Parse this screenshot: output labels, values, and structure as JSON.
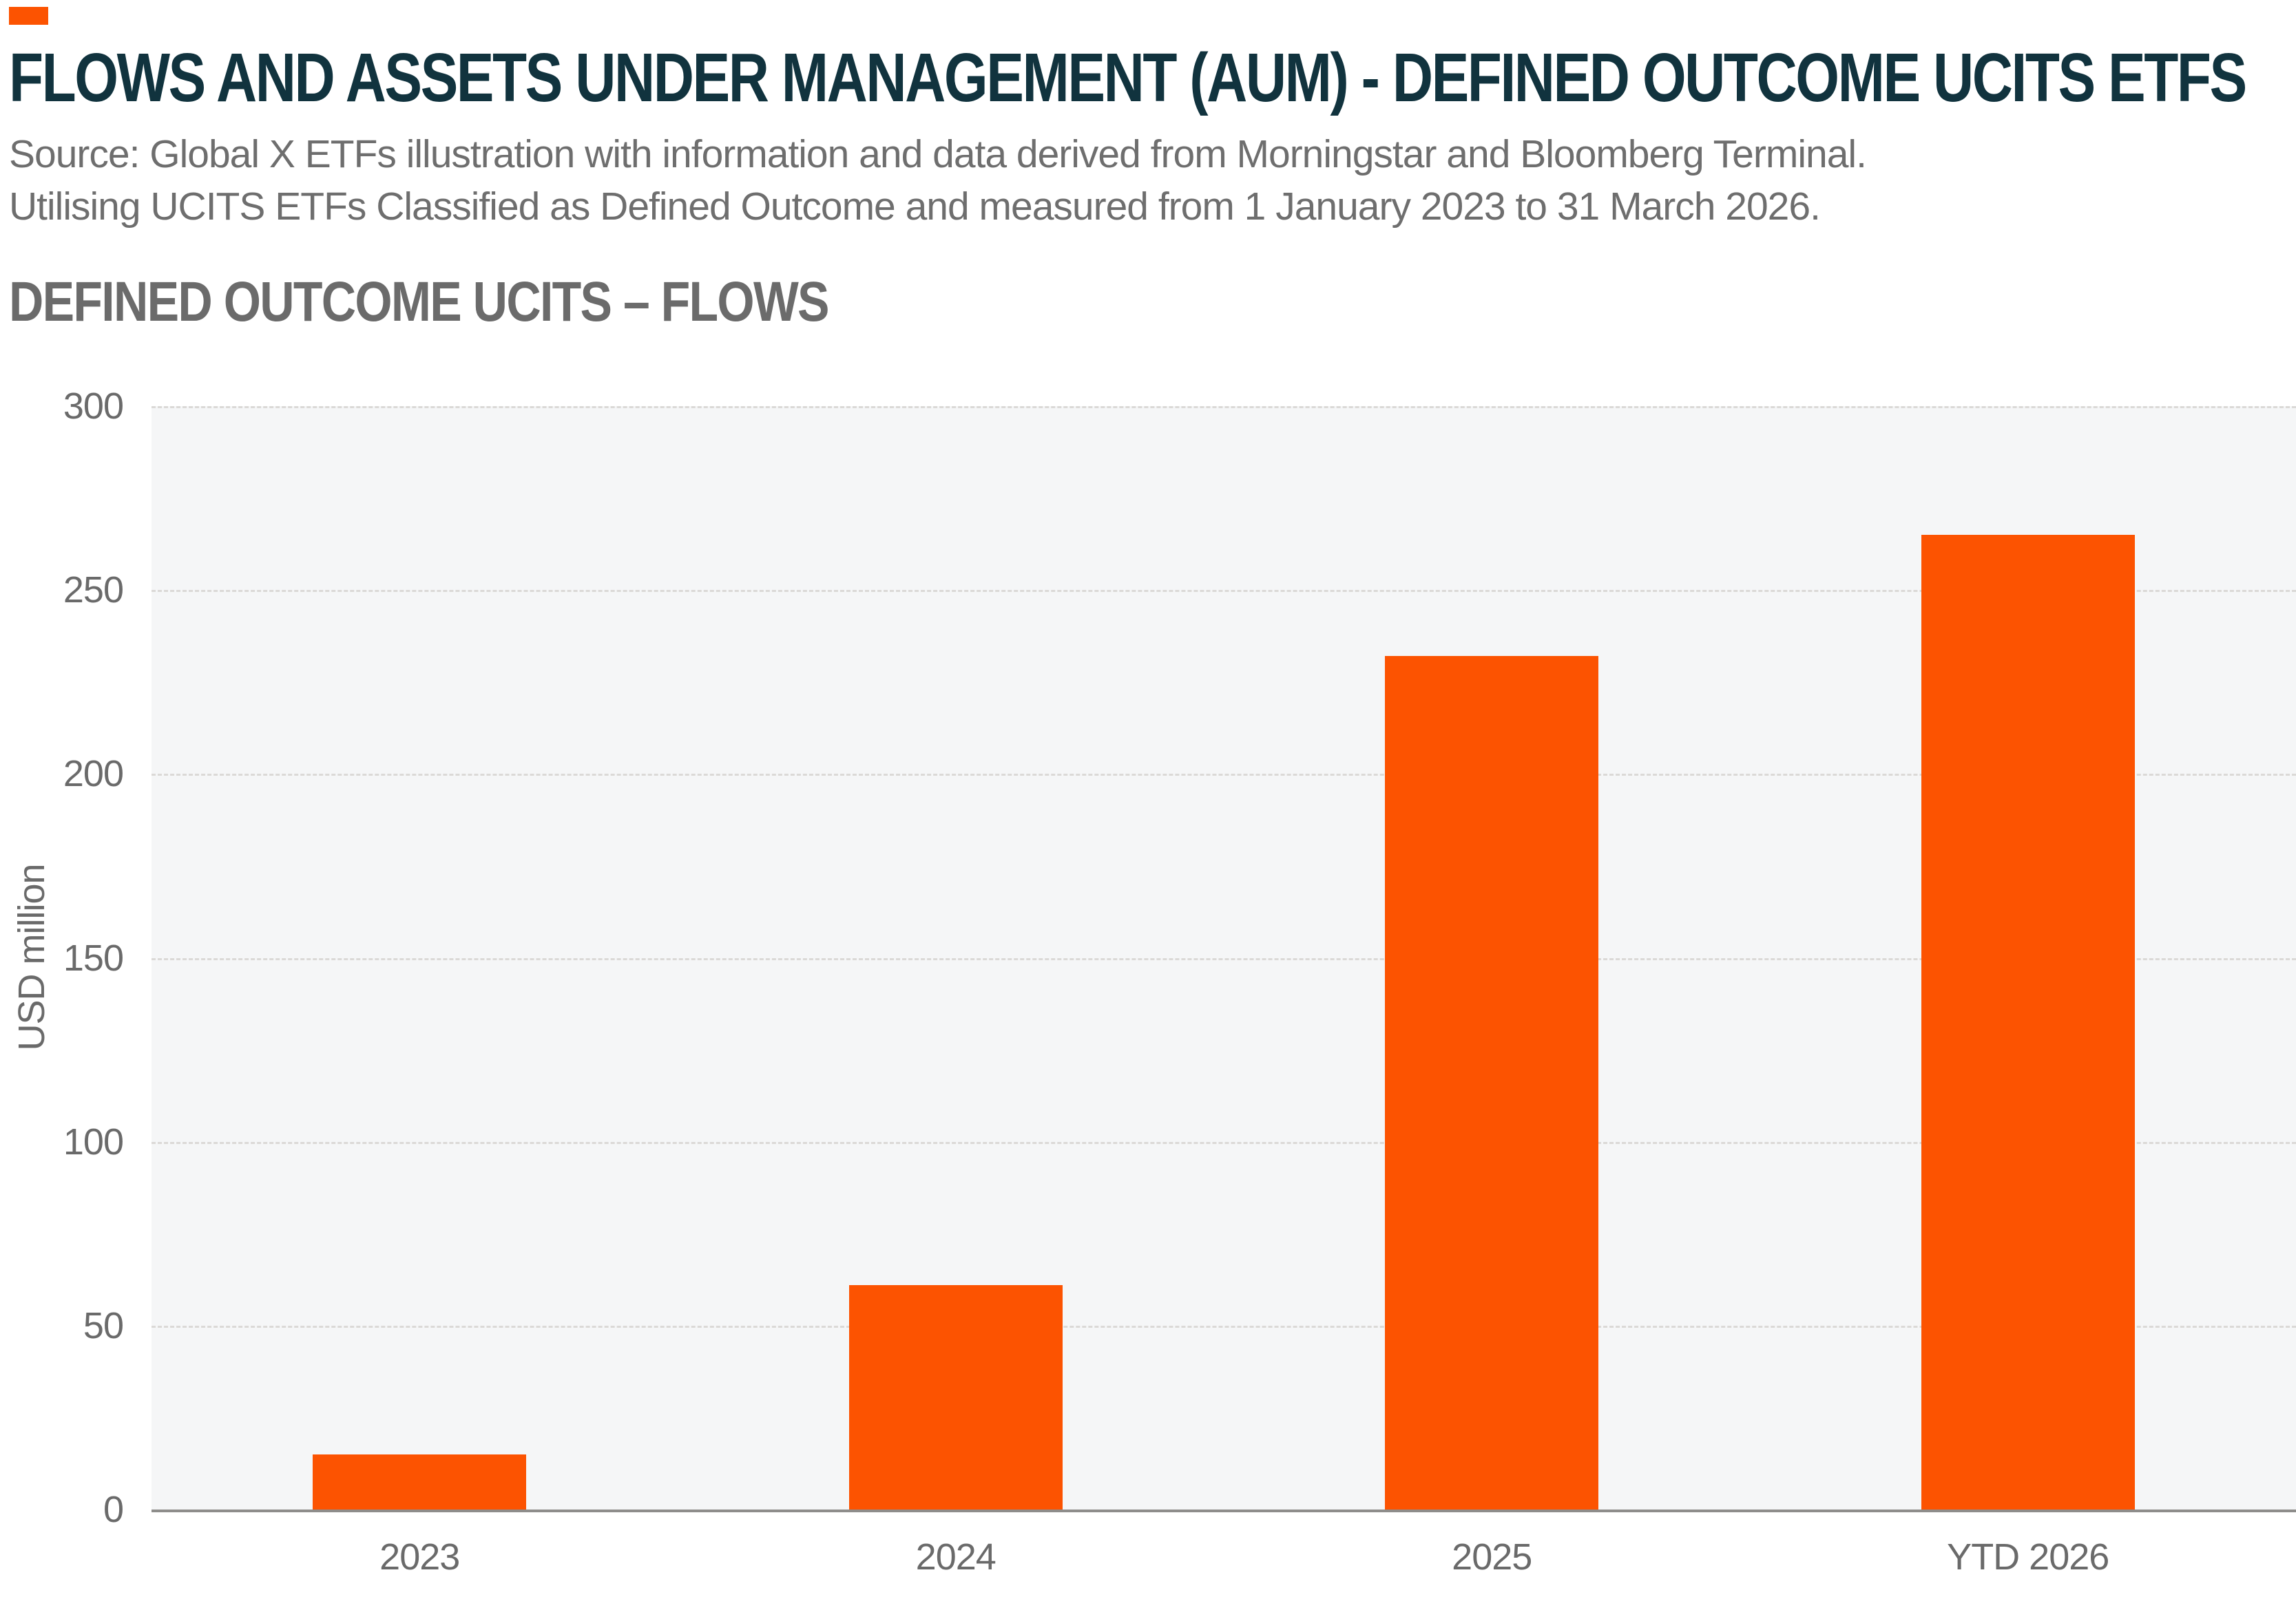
{
  "brand": {
    "accent_color": "#FC5301",
    "title_color": "#11333E"
  },
  "header": {
    "title": "FLOWS AND ASSETS UNDER MANAGEMENT (AUM) - DEFINED OUTCOME UCITS ETFS",
    "source_line1": "Source: Global X ETFs illustration with information and data derived from Morningstar and Bloomberg Terminal.",
    "source_line2": "Utilising UCITS ETFs Classified as Defined Outcome and measured from 1 January 2023 to 31 March 2026."
  },
  "section": {
    "title": "DEFINED OUTCOME UCITS – FLOWS"
  },
  "chart_data": {
    "type": "bar",
    "title": "DEFINED OUTCOME UCITS – FLOWS",
    "categories": [
      "2023",
      "2024",
      "2025",
      "YTD 2026"
    ],
    "values": [
      15,
      61,
      232,
      265
    ],
    "xlabel": "",
    "ylabel": "USD million",
    "ylim": [
      0,
      300
    ],
    "yticks": [
      0,
      50,
      100,
      150,
      200,
      250,
      300
    ],
    "grid": true,
    "legend_position": "none",
    "bar_color": "#FC5301",
    "plot_background": "#F5F6F7",
    "gridline_color": "#DBD9D7",
    "axis_line_color": "#8E8D8B",
    "tick_label_color": "#6A6A6A"
  }
}
